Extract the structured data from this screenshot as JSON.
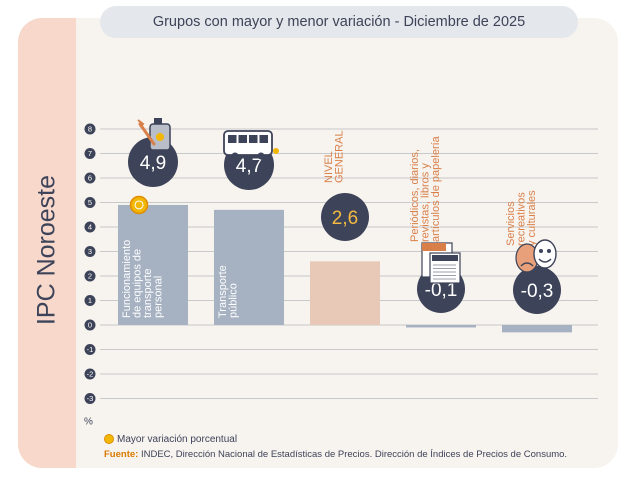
{
  "side_title": "IPC Noroeste",
  "title": "Grupos con mayor y menor variación - Diciembre de 2025",
  "legend_text": "Mayor variación porcentual",
  "source_label": "Fuente:",
  "source_text": "INDEC, Dirección Nacional de Estadísticas de Precios. Dirección de Índices de Precios de Consumo.",
  "colors": {
    "bar": "#a6b1c2",
    "general_bar": "#e8c9b8",
    "badge": "#3d4358",
    "badge_text": "#ffffff",
    "general_value": "#f4b942",
    "category_dark": "#ffffff",
    "category_warm": "#d9804a",
    "tick_circle": "#3d4358",
    "grid": "#9a9fa8",
    "highlight": "#f2b705"
  },
  "chart_data": {
    "type": "bar",
    "unit_label": "%",
    "ylim": [
      -3,
      8
    ],
    "yticks": [
      8,
      7,
      6,
      5,
      4,
      3,
      2,
      1,
      0,
      -1,
      -2,
      -3
    ],
    "categories": [
      "Funcionamiento de equipos de transporte personal",
      "Transporte público",
      "NIVEL GENERAL",
      "Periódicos, diarios, revistas, libros y artículos de papelería",
      "Servicios recreativos y culturales"
    ],
    "category_lines": [
      [
        "Funcionamiento",
        "de equipos de",
        "transporte",
        "personal"
      ],
      [
        "Transporte",
        "público"
      ],
      [
        "NIVEL",
        "GENERAL"
      ],
      [
        "Periódicos, diarios,",
        "revistas, libros y",
        "artículos de papelería"
      ],
      [
        "Servicios",
        "recreativos",
        "y culturales"
      ]
    ],
    "values": [
      4.9,
      4.7,
      2.6,
      -0.1,
      -0.3
    ],
    "value_labels": [
      "4,9",
      "4,7",
      "2,6",
      "-0,1",
      "-0,3"
    ],
    "highlighted_index": 0,
    "icons": [
      "fuel-wrench-icon",
      "bus-icon",
      "",
      "newspaper-icon",
      "theater-masks-icon"
    ]
  }
}
